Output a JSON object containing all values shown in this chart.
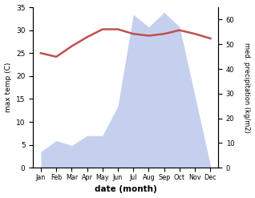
{
  "months": [
    "Jan",
    "Feb",
    "Mar",
    "Apr",
    "May",
    "Jun",
    "Jul",
    "Aug",
    "Sep",
    "Oct",
    "Nov",
    "Dec"
  ],
  "temperature": [
    25.0,
    24.2,
    26.5,
    28.5,
    30.2,
    30.2,
    29.2,
    28.8,
    29.2,
    30.0,
    29.2,
    28.2
  ],
  "precipitation": [
    6.5,
    11.0,
    9.0,
    13.0,
    13.0,
    25.0,
    62.0,
    57.0,
    63.0,
    57.0,
    29.0,
    1.0
  ],
  "precip_fill_color": "#c5d0ee",
  "temp_color": "#c0504d",
  "ylabel_left": "max temp (C)",
  "ylabel_right": "med. precipitation (kg/m2)",
  "xlabel": "date (month)",
  "ylim_left": [
    0,
    35
  ],
  "ylim_right": [
    0,
    65
  ],
  "yticks_left": [
    0,
    5,
    10,
    15,
    20,
    25,
    30,
    35
  ],
  "yticks_right": [
    0,
    10,
    20,
    30,
    40,
    50,
    60
  ],
  "background_color": "#ffffff"
}
